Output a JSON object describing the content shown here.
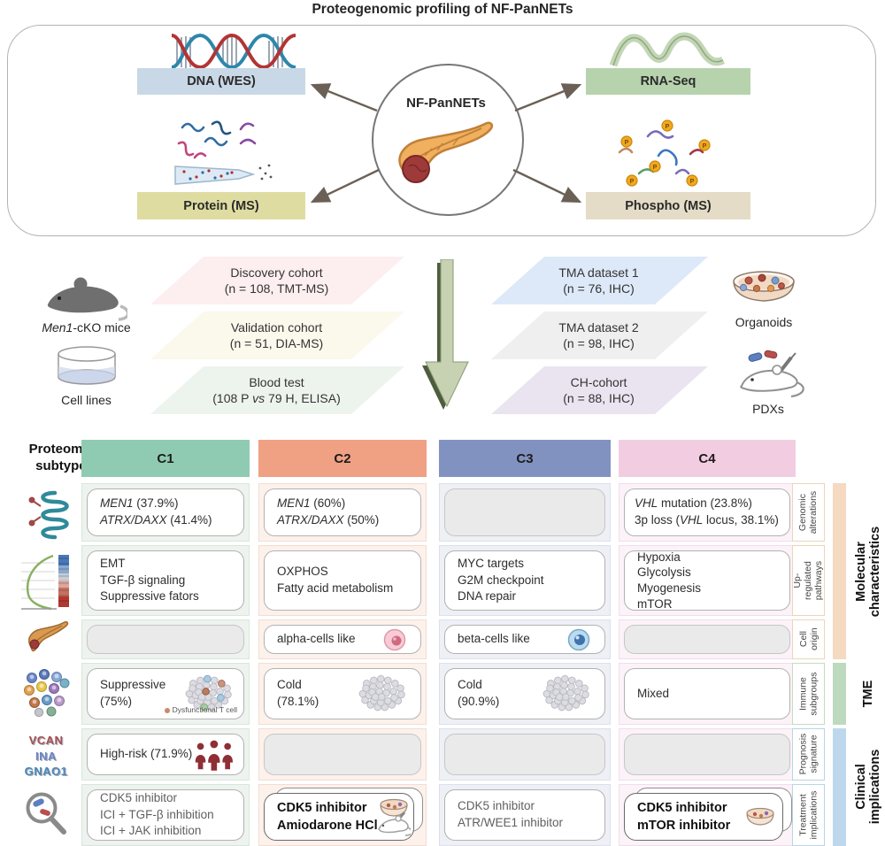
{
  "title": "Proteogenomic profiling of NF-PanNETs",
  "overview": {
    "center": "NF-PanNETs",
    "dna": {
      "label": "DNA (WES)",
      "bg": "#c9d8e6"
    },
    "rna": {
      "label": "RNA-Seq",
      "bg": "#b7d3ae"
    },
    "protein": {
      "label": "Protein (MS)",
      "bg": "#dfdca2"
    },
    "phospho": {
      "label": "Phospho (MS)",
      "bg": "#e5dcc7"
    }
  },
  "cohorts": {
    "mice_label": [
      {
        "t": "Men1",
        "i": true
      },
      {
        "t": "-cKO mice"
      }
    ],
    "cell_lines": "Cell lines",
    "organoids": "Organoids",
    "pdxs": "PDXs",
    "sheets_left": [
      {
        "l1": "Discovery cohort",
        "l2": [
          {
            "t": "(n = 108, TMT-MS)"
          }
        ],
        "bg": "#fdeef0"
      },
      {
        "l1": "Validation cohort",
        "l2": [
          {
            "t": "(n = 51, DIA-MS)"
          }
        ],
        "bg": "#fbf8ec"
      },
      {
        "l1": "Blood test",
        "l2": [
          {
            "t": "(108 P "
          },
          {
            "t": "vs",
            "i": true
          },
          {
            "t": " 79 H, ELISA)"
          }
        ],
        "bg": "#edf4ee"
      }
    ],
    "sheets_right": [
      {
        "l1": "TMA dataset 1",
        "l2": [
          {
            "t": "(n = 76, IHC)"
          }
        ],
        "bg": "#dde9f8"
      },
      {
        "l1": "TMA dataset 2",
        "l2": [
          {
            "t": "(n = 98, IHC)"
          }
        ],
        "bg": "#efeff0"
      },
      {
        "l1": "CH-cohort",
        "l2": [
          {
            "t": "(n = 88, IHC)"
          }
        ],
        "bg": "#eae4f1"
      }
    ]
  },
  "table": {
    "corner": "Proteomic\nsubtypes",
    "columns": [
      {
        "label": "C1",
        "color": "#8fcbb2"
      },
      {
        "label": "C2",
        "color": "#f0a183"
      },
      {
        "label": "C3",
        "color": "#8292c0"
      },
      {
        "label": "C4",
        "color": "#f2cde1"
      }
    ],
    "row_labels": [
      "Genomic\nalterations",
      "Up-regulated\npathways",
      "Cell\norigin",
      "Immune\nsubgroups",
      "Prognosis\nsignature",
      "Treatment\nimplications"
    ],
    "groups": [
      {
        "label": "Molecular\ncharacteristics",
        "color": "#f5d9c0"
      },
      {
        "label": "TME",
        "color": "#bedabe"
      },
      {
        "label": "Clinical\nimplications",
        "color": "#bdd8ec"
      }
    ],
    "genomic": {
      "c1": [
        [
          {
            "t": "MEN1",
            "i": true
          },
          {
            "t": " (37.9%)"
          }
        ],
        [
          {
            "t": "ATRX/DAXX",
            "i": true
          },
          {
            "t": " (41.4%)"
          }
        ]
      ],
      "c2": [
        [
          {
            "t": "MEN1",
            "i": true
          },
          {
            "t": " (60%)"
          }
        ],
        [
          {
            "t": "ATRX/DAXX",
            "i": true
          },
          {
            "t": " (50%)"
          }
        ]
      ],
      "c4": [
        [
          {
            "t": "VHL",
            "i": true
          },
          {
            "t": " mutation (23.8%)"
          }
        ],
        [
          {
            "t": "3p loss ("
          },
          {
            "t": "VHL",
            "i": true
          },
          {
            "t": " locus, 38.1%)"
          }
        ]
      ]
    },
    "pathways": {
      "c1": [
        "EMT",
        "TGF-β signaling",
        "Suppressive fators"
      ],
      "c2": [
        "OXPHOS",
        "Fatty acid metabolism"
      ],
      "c3": [
        "MYC targets",
        "G2M checkpoint",
        "DNA repair"
      ],
      "c4": [
        "Hypoxia",
        "Glycolysis",
        "Myogenesis",
        "mTOR"
      ]
    },
    "origin": {
      "c2": "alpha-cells like",
      "c3": "beta-cells like"
    },
    "immune": {
      "c1_l1": "Suppressive",
      "c1_l2": "(75%)",
      "c1_legend": "Dysfunctional T cell",
      "c2_l1": "Cold",
      "c2_l2": "(78.1%)",
      "c3_l1": "Cold",
      "c3_l2": "(90.9%)",
      "c4": "Mixed"
    },
    "prognosis": {
      "c1": "High-risk (71.9%)"
    },
    "prognosis_genes": [
      "VCAN",
      "INA",
      "GNAO1"
    ],
    "treatment": {
      "c1": [
        "CDK5 inhibitor",
        "ICI + TGF-β inhibition",
        "ICI + JAK inhibition"
      ],
      "c2": [
        "CDK5 inhibitor",
        "Amiodarone HCl"
      ],
      "c3": [
        "CDK5 inhibitor",
        "ATR/WEE1 inhibitor"
      ],
      "c4": [
        "CDK5 inhibitor",
        "mTOR inhibitor"
      ]
    }
  }
}
